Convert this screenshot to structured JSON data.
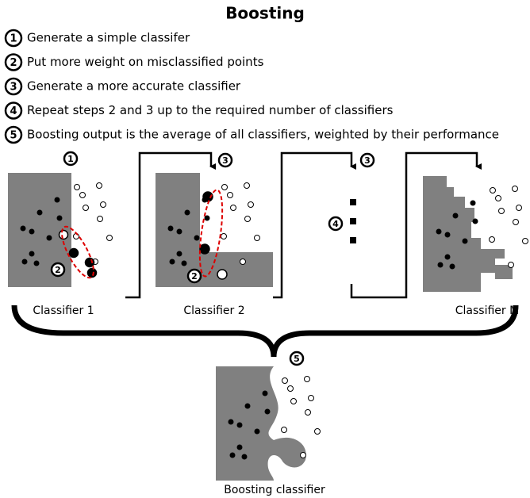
{
  "title": "Boosting",
  "steps": [
    {
      "number": "1",
      "text": "Generate a simple classifer"
    },
    {
      "number": "2",
      "text": "Put more weight on misclassified points"
    },
    {
      "number": "3",
      "text": "Generate a more accurate classifier"
    },
    {
      "number": "4",
      "text": "Repeat steps 2 and 3 up to the required number of classifiers"
    },
    {
      "number": "5",
      "text": "Boosting output is the average of all classifiers, weighted by their performance"
    }
  ],
  "panels": [
    {
      "label": "Classifier 1",
      "step_marker": "1",
      "weight_marker": "2"
    },
    {
      "label": "Classifier 2",
      "step_marker": "3",
      "weight_marker": "2"
    },
    {
      "label": "Classifier M"
    }
  ],
  "repeat": {
    "step_marker": "3",
    "repeat_marker": "4"
  },
  "output": {
    "label": "Boosting classifier",
    "marker": "5"
  }
}
